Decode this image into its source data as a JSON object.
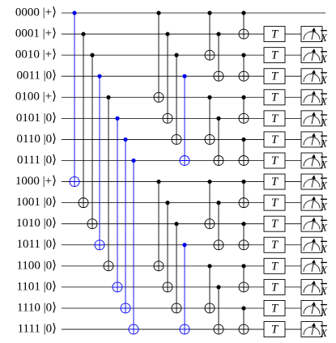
{
  "wires": [
    "0000 |+⟩",
    "0001 |+⟩",
    "0010 |+⟩",
    "0011 |0⟩",
    "0100 |+⟩",
    "0101 |0⟩",
    "0110 |0⟩",
    "0111 |0⟩",
    "1000 |+⟩",
    "1001 |0⟩",
    "1010 |0⟩",
    "1011 |0⟩",
    "1100 |0⟩",
    "1101 |0⟩",
    "1110 |0⟩",
    "1111 |0⟩"
  ],
  "gate_label": "T",
  "measure_label": "X"
}
